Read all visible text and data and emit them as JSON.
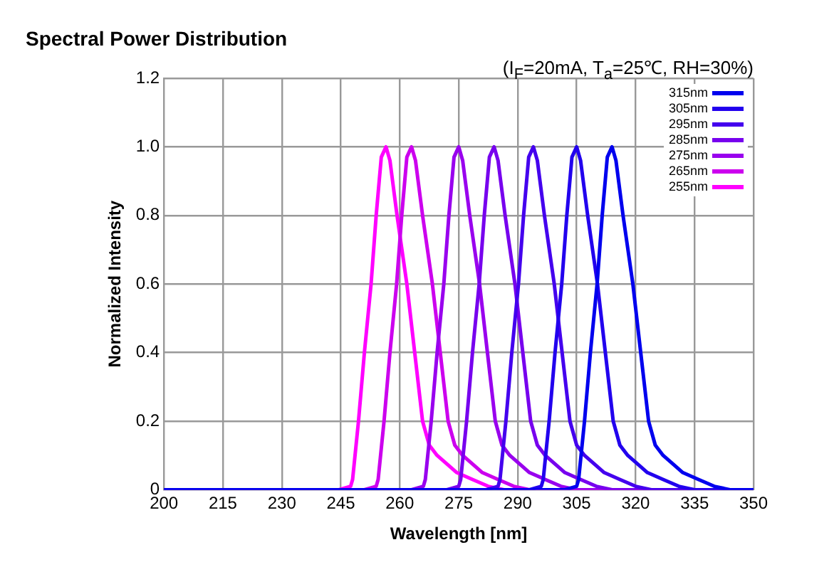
{
  "chart_data": {
    "type": "line",
    "title": "Spectral Power Distribution",
    "subtitle": "(I$_{F}$=20mA, T$_{a}$=25℃, RH=30%)",
    "xlabel": "Wavelength [nm]",
    "ylabel": "Normalized Intensity",
    "xlim": [
      200,
      350
    ],
    "xticks": [
      200,
      215,
      230,
      245,
      260,
      275,
      290,
      305,
      320,
      335,
      350
    ],
    "ylim": [
      0,
      1.2
    ],
    "yticks": [
      0,
      0.2,
      0.4,
      0.6,
      0.8,
      {
        "value": 1,
        "label": "1.0"
      },
      1.2
    ],
    "grid": true,
    "legend": "top right",
    "marker": "none",
    "line_style": "solid",
    "series": [
      {
        "name": "315nm",
        "color": "#0000ee",
        "x": [
          200,
          302,
          305,
          305.5,
          307,
          308.5,
          310.2,
          311.5,
          312.8,
          314,
          315,
          316.8,
          319.3,
          321.3,
          323.3,
          325,
          327,
          330,
          332,
          336,
          340,
          344,
          350
        ],
        "values": [
          0,
          0,
          0.01,
          0.03,
          0.2,
          0.4,
          0.6,
          0.8,
          0.97,
          1,
          0.96,
          0.8,
          0.6,
          0.4,
          0.2,
          0.13,
          0.1,
          0.07,
          0.05,
          0.03,
          0.01,
          0,
          0
        ]
      },
      {
        "name": "305nm",
        "color": "#2200ee",
        "x": [
          200,
          293,
          296,
          296.5,
          298,
          299.5,
          301.2,
          302.5,
          303.8,
          305,
          306,
          307.8,
          310.3,
          312.3,
          314.3,
          316,
          318,
          321,
          323,
          327,
          331,
          335,
          350
        ],
        "values": [
          0,
          0,
          0.01,
          0.03,
          0.2,
          0.4,
          0.6,
          0.8,
          0.97,
          1,
          0.96,
          0.8,
          0.6,
          0.4,
          0.2,
          0.13,
          0.1,
          0.07,
          0.05,
          0.03,
          0.01,
          0,
          0
        ]
      },
      {
        "name": "295nm",
        "color": "#4400ee",
        "x": [
          200,
          282,
          285,
          285.5,
          287,
          288.5,
          290.2,
          291.5,
          292.8,
          294,
          295,
          296.8,
          299.3,
          301.3,
          303.3,
          305,
          307,
          310,
          312,
          316,
          320,
          324,
          350
        ],
        "values": [
          0,
          0,
          0.01,
          0.03,
          0.2,
          0.4,
          0.6,
          0.8,
          0.97,
          1,
          0.96,
          0.8,
          0.6,
          0.4,
          0.2,
          0.13,
          0.1,
          0.07,
          0.05,
          0.03,
          0.01,
          0,
          0
        ]
      },
      {
        "name": "285nm",
        "color": "#7700ee",
        "x": [
          200,
          272,
          275,
          275.5,
          277,
          278.5,
          280.2,
          281.5,
          282.8,
          284,
          285,
          286.8,
          289.3,
          291.3,
          293.3,
          295,
          297,
          300,
          302,
          306,
          310,
          314,
          350
        ],
        "values": [
          0,
          0,
          0.01,
          0.03,
          0.2,
          0.4,
          0.6,
          0.8,
          0.97,
          1,
          0.96,
          0.8,
          0.6,
          0.4,
          0.2,
          0.13,
          0.1,
          0.07,
          0.05,
          0.03,
          0.01,
          0,
          0
        ]
      },
      {
        "name": "275nm",
        "color": "#9900ee",
        "x": [
          200,
          263,
          266,
          266.5,
          268,
          269.5,
          271.2,
          272.5,
          273.8,
          275,
          276,
          277.8,
          280.3,
          282.3,
          284.3,
          286,
          288,
          291,
          293,
          297,
          301,
          305,
          350
        ],
        "values": [
          0,
          0,
          0.01,
          0.03,
          0.2,
          0.4,
          0.6,
          0.8,
          0.97,
          1,
          0.96,
          0.8,
          0.6,
          0.4,
          0.2,
          0.13,
          0.1,
          0.07,
          0.05,
          0.03,
          0.01,
          0,
          0
        ]
      },
      {
        "name": "265nm",
        "color": "#cc00ee",
        "x": [
          200,
          251,
          254,
          254.5,
          256,
          257.5,
          259.2,
          260.5,
          261.8,
          263,
          264,
          265.8,
          268.3,
          270.3,
          272.3,
          274,
          276,
          279,
          281,
          285,
          289,
          293,
          350
        ],
        "values": [
          0,
          0,
          0.01,
          0.03,
          0.2,
          0.4,
          0.6,
          0.8,
          0.97,
          1,
          0.96,
          0.8,
          0.6,
          0.4,
          0.2,
          0.13,
          0.1,
          0.07,
          0.05,
          0.03,
          0.01,
          0,
          0
        ]
      },
      {
        "name": "255nm",
        "color": "#ff00ff",
        "x": [
          200,
          244.5,
          247.5,
          248,
          249.5,
          251,
          252.7,
          254,
          255.3,
          256.5,
          257.5,
          259.3,
          261.8,
          263.8,
          265.8,
          267.5,
          269.5,
          272.5,
          274.5,
          278.5,
          282.5,
          286.5,
          350
        ],
        "values": [
          0,
          0,
          0.01,
          0.03,
          0.2,
          0.4,
          0.6,
          0.8,
          0.97,
          1,
          0.96,
          0.8,
          0.6,
          0.4,
          0.2,
          0.13,
          0.1,
          0.07,
          0.05,
          0.03,
          0.01,
          0,
          0
        ]
      }
    ]
  }
}
